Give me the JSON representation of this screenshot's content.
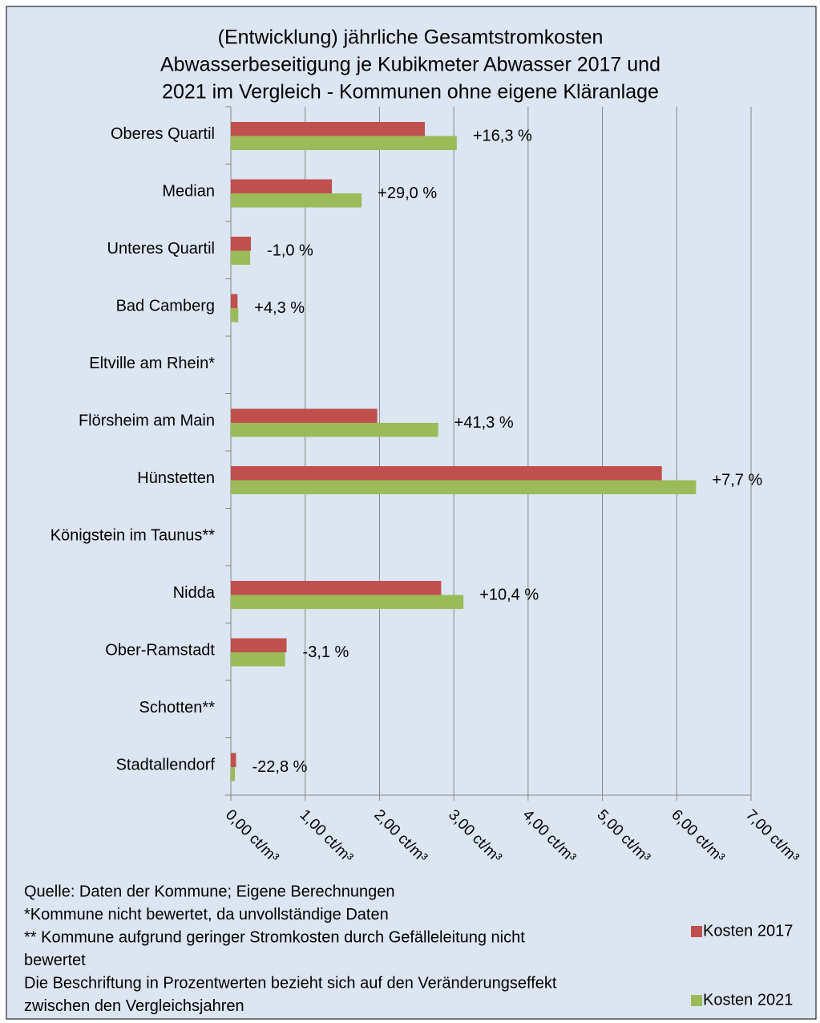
{
  "chart_data": {
    "type": "bar",
    "orientation": "horizontal",
    "title": [
      "(Entwicklung) jährliche Gesamtstromkosten",
      "Abwasserbeseitigung je Kubikmeter Abwasser 2017 und",
      "2021 im Vergleich - Kommunen ohne eigene Kläranlage"
    ],
    "categories": [
      "Oberes Quartil",
      "Median",
      "Unteres Quartil",
      "Bad Camberg",
      "Eltville am Rhein*",
      "Flörsheim am Main",
      "Hünstetten",
      "Königstein im Taunus**",
      "Nidda",
      "Ober-Ramstadt",
      "Schotten**",
      "Stadtallendorf"
    ],
    "series": [
      {
        "name": "Kosten 2017",
        "color": "#c0504d",
        "values": [
          2.61,
          1.36,
          0.27,
          0.09,
          null,
          1.97,
          5.8,
          null,
          2.83,
          0.75,
          null,
          0.07
        ]
      },
      {
        "name": "Kosten 2021",
        "color": "#9bbb59",
        "values": [
          3.04,
          1.76,
          0.26,
          0.1,
          null,
          2.79,
          6.26,
          null,
          3.13,
          0.73,
          null,
          0.055
        ]
      }
    ],
    "annotations": [
      "+16,3 %",
      "+29,0 %",
      "-1,0 %",
      "+4,3 %",
      null,
      "+41,3 %",
      "+7,7 %",
      null,
      "+10,4 %",
      "-3,1 %",
      null,
      "-22,8 %"
    ],
    "xlim": [
      0,
      7
    ],
    "xticks": [
      {
        "value": 0,
        "label": "0,00 ct/m³"
      },
      {
        "value": 1,
        "label": "1,00 ct/m³"
      },
      {
        "value": 2,
        "label": "2,00 ct/m³"
      },
      {
        "value": 3,
        "label": "3,00 ct/m³"
      },
      {
        "value": 4,
        "label": "4,00 ct/m³"
      },
      {
        "value": 5,
        "label": "5,00 ct/m³"
      },
      {
        "value": 6,
        "label": "6,00 ct/m³"
      },
      {
        "value": 7,
        "label": "7,00 ct/m³"
      }
    ],
    "grid": true,
    "legend": "lower right",
    "notes": [
      "Quelle: Daten der Kommune; Eigene Berechnungen",
      "*Kommune nicht bewertet, da unvollständige Daten",
      "** Kommune aufgrund geringer Stromkosten durch Gefälleleitung nicht",
      "bewertet",
      "Die Beschriftung in Prozentwerten bezieht sich auf den Veränderungseffekt",
      "zwischen den Vergleichsjahren"
    ]
  }
}
